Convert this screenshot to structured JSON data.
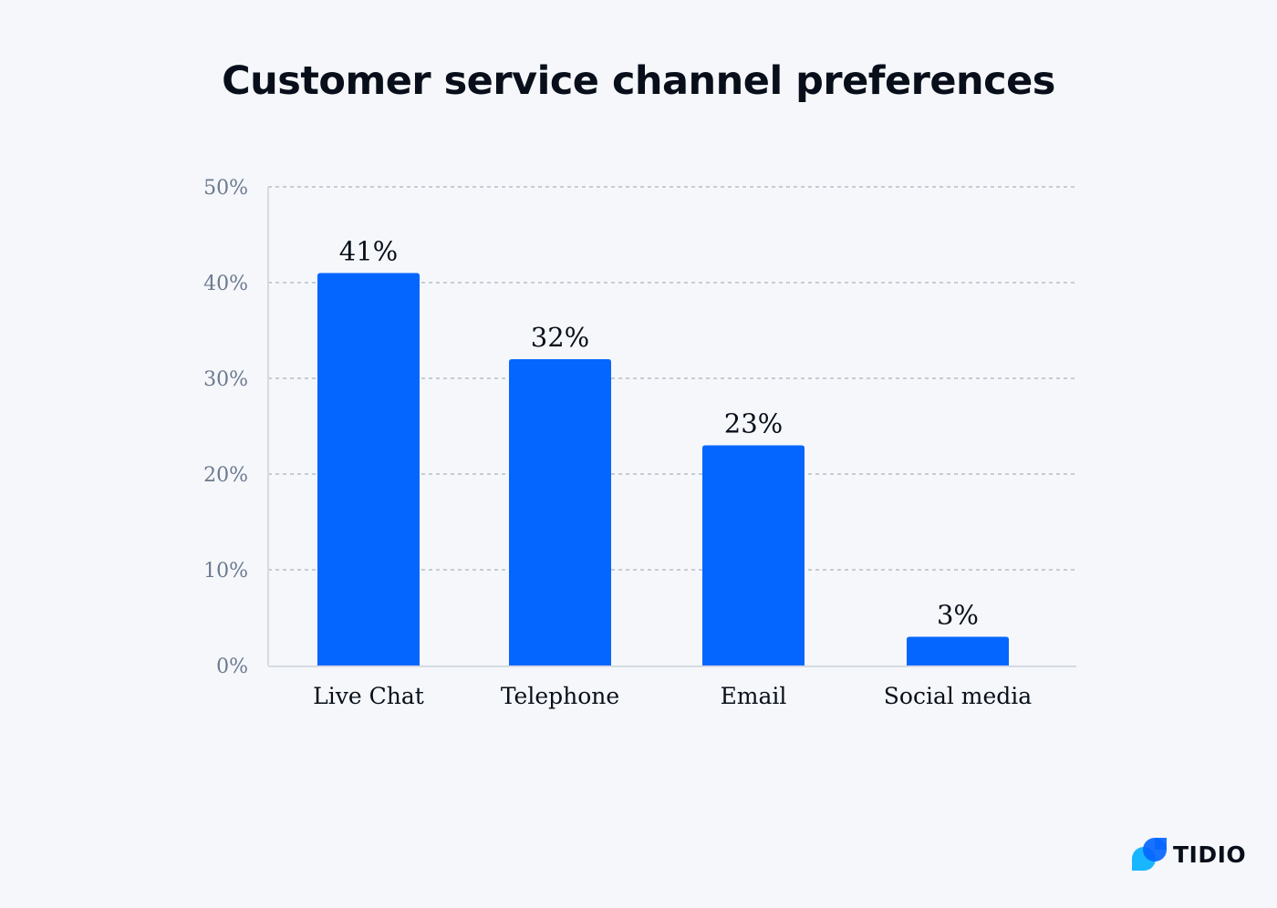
{
  "chart_data": {
    "type": "bar",
    "title": "Customer service channel preferences",
    "categories": [
      "Live Chat",
      "Telephone",
      "Email",
      "Social media"
    ],
    "values": [
      41,
      32,
      23,
      3
    ],
    "data_labels": [
      "41%",
      "32%",
      "23%",
      "3%"
    ],
    "xlabel": "",
    "ylabel": "",
    "ylim": [
      0,
      50
    ],
    "yticks": [
      "0%",
      "10%",
      "20%",
      "30%",
      "40%",
      "50%"
    ],
    "grid": true,
    "bar_color": "#0566ff"
  },
  "logo": {
    "text": "TIDIO",
    "colors": [
      "#0566ff",
      "#18b6ff"
    ]
  }
}
